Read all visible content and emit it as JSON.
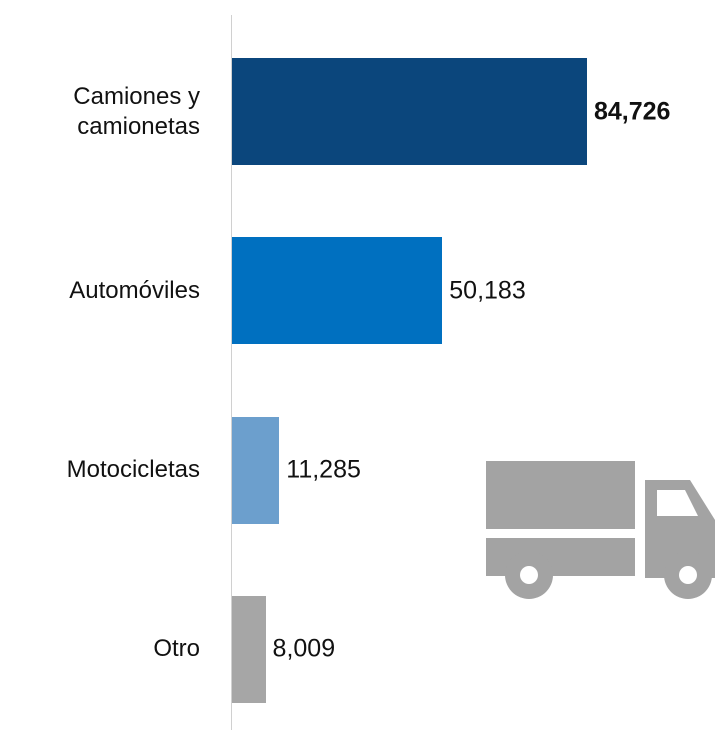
{
  "chart_data": {
    "type": "bar",
    "orientation": "horizontal",
    "categories": [
      "Camiones y camionetas",
      "Automóviles",
      "Motocicletas",
      "Otro"
    ],
    "values": [
      84726,
      50183,
      11285,
      8009
    ],
    "value_labels": [
      "84,726",
      "50,183",
      "11,285",
      "8,009"
    ],
    "colors": [
      "#0b467c",
      "#0070c0",
      "#6c9fcd",
      "#a6a6a6"
    ]
  }
}
